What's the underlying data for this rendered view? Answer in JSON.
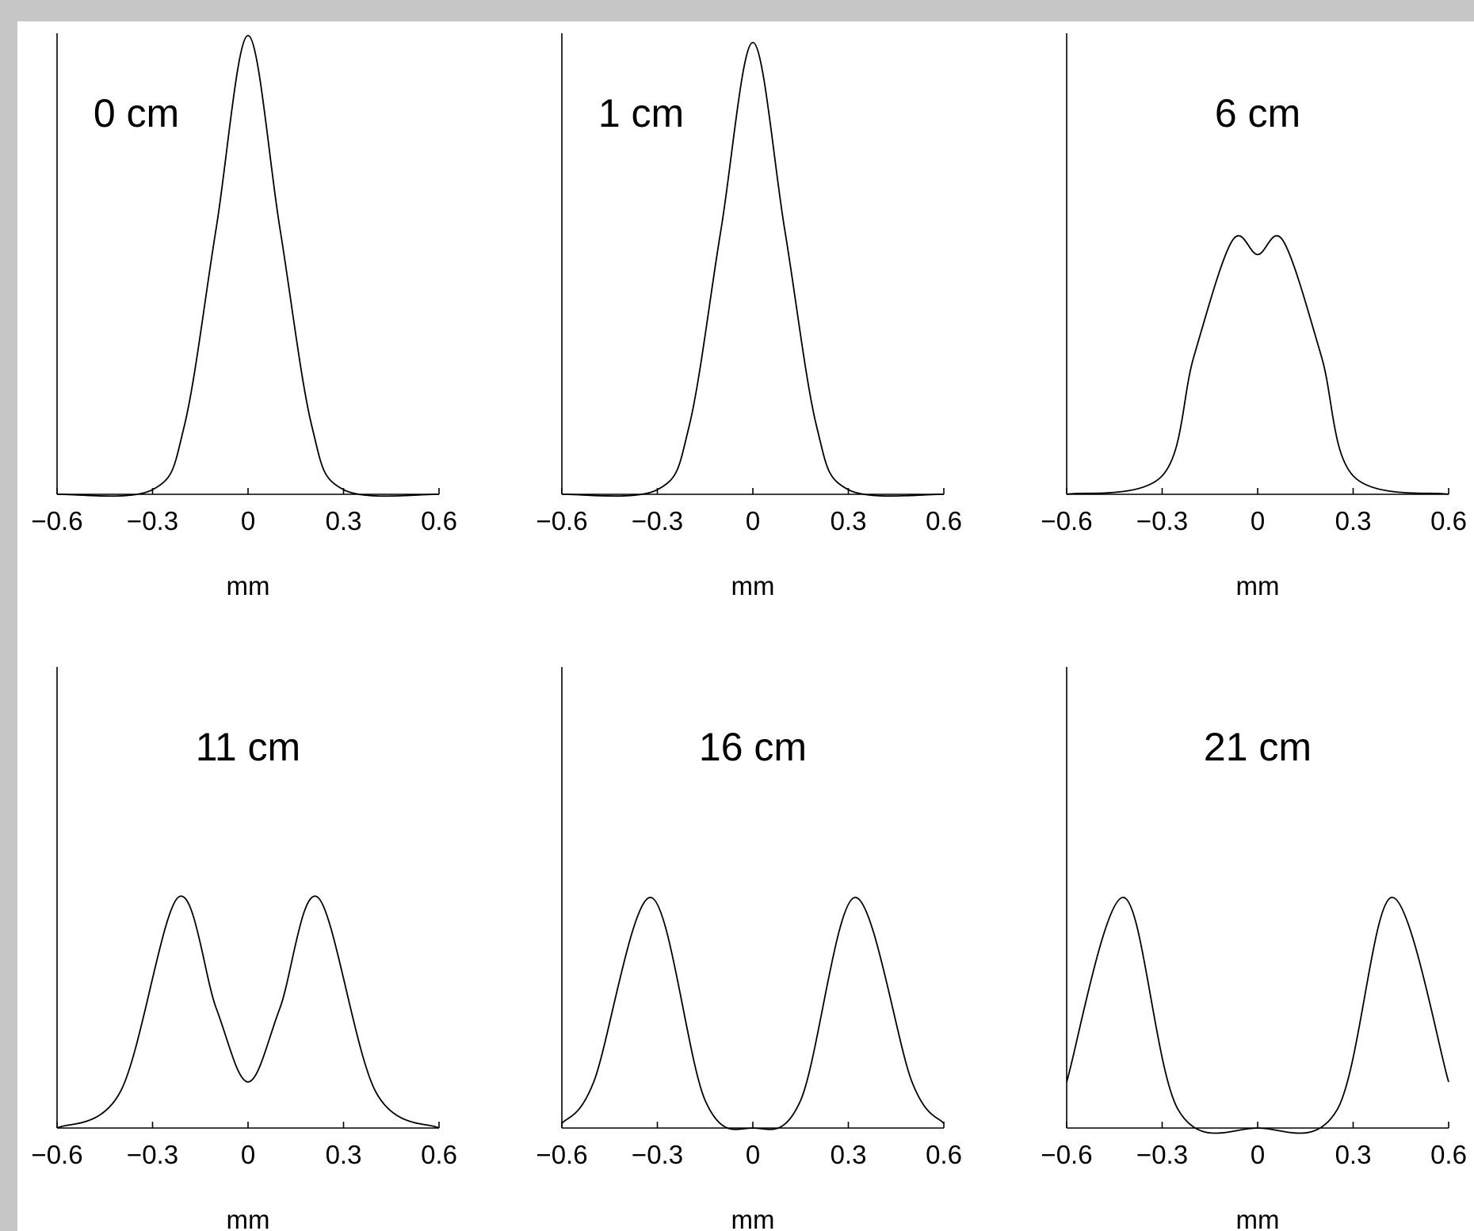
{
  "chart_data": [
    {
      "type": "line",
      "title": "0 cm",
      "xlabel": "mm",
      "xlim": [
        -0.6,
        0.6
      ],
      "ylim": [
        0,
        1
      ],
      "xticks": [
        -0.6,
        -0.3,
        0,
        0.3,
        0.6
      ],
      "xtick_labels": [
        "−0.6",
        "−0.3",
        "0",
        "0.3",
        "0.6"
      ],
      "series": [
        {
          "x": [
            -0.6,
            -0.3,
            -0.2,
            -0.1,
            0,
            0.1,
            0.2,
            0.3,
            0.6
          ],
          "y": [
            0,
            0.01,
            0.15,
            0.58,
            1.0,
            0.58,
            0.15,
            0.01,
            0
          ]
        }
      ]
    },
    {
      "type": "line",
      "title": "1 cm",
      "xlabel": "mm",
      "xlim": [
        -0.6,
        0.6
      ],
      "ylim": [
        0,
        1
      ],
      "xticks": [
        -0.6,
        -0.3,
        0,
        0.3,
        0.6
      ],
      "xtick_labels": [
        "−0.6",
        "−0.3",
        "0",
        "0.3",
        "0.6"
      ],
      "series": [
        {
          "x": [
            -0.6,
            -0.3,
            -0.2,
            -0.1,
            0,
            0.1,
            0.2,
            0.3,
            0.6
          ],
          "y": [
            0,
            0.01,
            0.15,
            0.58,
            0.99,
            0.58,
            0.15,
            0.01,
            0
          ]
        }
      ]
    },
    {
      "type": "line",
      "title": "6 cm",
      "xlabel": "mm",
      "xlim": [
        -0.6,
        0.6
      ],
      "ylim": [
        0,
        1
      ],
      "xticks": [
        -0.6,
        -0.3,
        0,
        0.3,
        0.6
      ],
      "xtick_labels": [
        "−0.6",
        "−0.3",
        "0",
        "0.3",
        "0.6"
      ],
      "series": [
        {
          "x": [
            -0.6,
            -0.3,
            -0.2,
            -0.08,
            0,
            0.08,
            0.2,
            0.3,
            0.6
          ],
          "y": [
            0,
            0.04,
            0.3,
            0.55,
            0.52,
            0.55,
            0.3,
            0.04,
            0
          ]
        }
      ]
    },
    {
      "type": "line",
      "title": "11 cm",
      "xlabel": "mm",
      "xlim": [
        -0.6,
        0.6
      ],
      "ylim": [
        0,
        1
      ],
      "xticks": [
        -0.6,
        -0.3,
        0,
        0.3,
        0.6
      ],
      "xtick_labels": [
        "−0.6",
        "−0.3",
        "0",
        "0.3",
        "0.6"
      ],
      "series": [
        {
          "x": [
            -0.6,
            -0.4,
            -0.22,
            -0.1,
            0,
            0.1,
            0.22,
            0.4,
            0.6
          ],
          "y": [
            0,
            0.08,
            0.5,
            0.26,
            0.1,
            0.26,
            0.5,
            0.08,
            0
          ]
        }
      ]
    },
    {
      "type": "line",
      "title": "16 cm",
      "xlabel": "mm",
      "xlim": [
        -0.6,
        0.6
      ],
      "ylim": [
        0,
        1
      ],
      "xticks": [
        -0.6,
        -0.3,
        0,
        0.3,
        0.6
      ],
      "xtick_labels": [
        "−0.6",
        "−0.3",
        "0",
        "0.3",
        "0.6"
      ],
      "series": [
        {
          "x": [
            -0.6,
            -0.5,
            -0.32,
            -0.15,
            0,
            0.15,
            0.32,
            0.5,
            0.6
          ],
          "y": [
            0.01,
            0.1,
            0.5,
            0.06,
            0,
            0.06,
            0.5,
            0.1,
            0.01
          ]
        }
      ]
    },
    {
      "type": "line",
      "title": "21 cm",
      "xlabel": "mm",
      "xlim": [
        -0.6,
        0.6
      ],
      "ylim": [
        0,
        1
      ],
      "xticks": [
        -0.6,
        -0.3,
        0,
        0.3,
        0.6
      ],
      "xtick_labels": [
        "−0.6",
        "−0.3",
        "0",
        "0.3",
        "0.6"
      ],
      "series": [
        {
          "x": [
            -0.6,
            -0.42,
            -0.25,
            0,
            0.25,
            0.42,
            0.6
          ],
          "y": [
            0.1,
            0.5,
            0.04,
            0,
            0.04,
            0.5,
            0.1
          ]
        }
      ]
    }
  ]
}
